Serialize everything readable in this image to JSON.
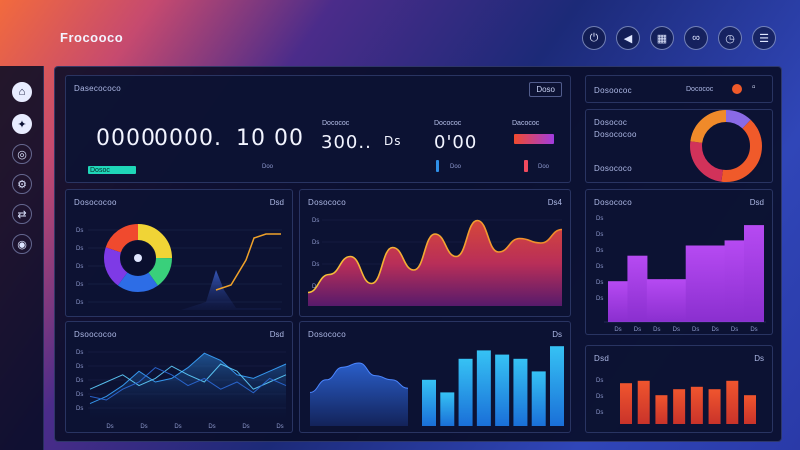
{
  "brand": {
    "title": "Frocooco"
  },
  "top_icons": [
    "power-icon",
    "back-icon",
    "grid-icon",
    "link-icon",
    "clock-icon",
    "menu-icon"
  ],
  "top_icon_glyphs": [
    "⏻",
    "◀",
    "▦",
    "∞",
    "◷",
    "☰"
  ],
  "sidebar": {
    "items": [
      {
        "icon": "home-icon",
        "glyph": "⌂"
      },
      {
        "icon": "compass-icon",
        "glyph": "✦"
      },
      {
        "icon": "globe-icon",
        "glyph": "◎"
      },
      {
        "icon": "settings-icon",
        "glyph": "⚙"
      },
      {
        "icon": "share-icon",
        "glyph": "⇄"
      },
      {
        "icon": "user-icon",
        "glyph": "◉"
      }
    ]
  },
  "kpi_panel": {
    "title": "Dasecococo",
    "button": "Doso",
    "values": [
      {
        "value": "0000",
        "label": "Dosoc"
      },
      {
        "value": "0000.",
        "label": ""
      },
      {
        "value": "10 00",
        "label": ""
      },
      {
        "value": "300..",
        "label": "Docococ"
      },
      {
        "value": "Ds",
        "label": ""
      },
      {
        "value": "0'00",
        "label": "Docococ"
      },
      {
        "value": "",
        "label": "Dacococ"
      }
    ],
    "subs": [
      "Doo",
      "Doo",
      "Doo"
    ]
  },
  "right_top": {
    "title": "Dosoococ",
    "tag": "Docococ",
    "subtitle": "Dosococ",
    "sub2": "Dosococoo",
    "sub3": "Dosococo"
  },
  "colors": {
    "purple": "#a23ce0",
    "orange": "#f05a2a",
    "blue": "#2f8fe8",
    "cyan": "#32b6f0",
    "red_bar": "#e2472c",
    "accent_green": "#1fd6b8"
  },
  "charts": {
    "donut_panel": {
      "title": "Dosococoo",
      "tag": "Dsd",
      "yticks": [
        "Ds",
        "Ds",
        "Ds",
        "Ds",
        "Ds"
      ],
      "chart_data": {
        "type": "pie",
        "values": [
          25,
          15,
          20,
          20,
          20
        ],
        "colors": [
          "#f0d436",
          "#39d07b",
          "#2d6de6",
          "#7e3ae6",
          "#f04a2e"
        ]
      }
    },
    "main_area": {
      "title": "Dosococo",
      "tag": "Ds4",
      "yticks": [
        "Ds",
        "Ds",
        "Ds",
        "Ds"
      ],
      "chart_data": {
        "type": "area",
        "x": [
          0,
          1,
          2,
          3,
          4,
          5,
          6,
          7,
          8,
          9,
          10,
          11,
          12
        ],
        "values": [
          15,
          35,
          55,
          25,
          65,
          40,
          80,
          55,
          95,
          60,
          75,
          70,
          85
        ],
        "ylim": [
          0,
          100
        ]
      }
    },
    "right_bars": {
      "title": "Dosococo",
      "tag": "Dsd",
      "yticks": [
        "Ds",
        "Ds",
        "Ds",
        "Ds",
        "Ds",
        "Ds"
      ],
      "xticks": [
        "Ds",
        "Ds",
        "Ds",
        "Ds",
        "Ds",
        "Ds",
        "Ds",
        "Ds"
      ],
      "chart_data": {
        "type": "bar",
        "values": [
          40,
          65,
          42,
          42,
          75,
          75,
          80,
          95
        ],
        "ylim": [
          0,
          100
        ]
      }
    },
    "line_panel": {
      "title": "Dsoococoo",
      "tag": "Dsd",
      "yticks": [
        "Ds",
        "Ds",
        "Ds",
        "Ds",
        "Ds"
      ],
      "xticks": [
        "Ds",
        "Ds",
        "Ds",
        "Ds",
        "Ds",
        "Ds"
      ],
      "chart_data": {
        "type": "line",
        "x": [
          0,
          1,
          2,
          3,
          4,
          5,
          6,
          7,
          8,
          9,
          10,
          11,
          12
        ],
        "series": [
          {
            "values": [
              20,
              30,
              45,
              65,
              50,
              55,
              70,
              90,
              80,
              60,
              55,
              65,
              75
            ]
          },
          {
            "values": [
              40,
              50,
              60,
              45,
              55,
              72,
              60,
              50,
              75,
              65,
              40,
              50,
              60
            ]
          },
          {
            "values": [
              30,
              25,
              40,
              50,
              70,
              60,
              45,
              55,
              40,
              50,
              35,
              55,
              45
            ]
          }
        ],
        "ylim": [
          0,
          100
        ]
      }
    },
    "mixed_panel": {
      "title": "Dosococo",
      "tag": "Ds",
      "chart_data": {
        "type": "bar",
        "area_values": [
          40,
          55,
          70,
          75,
          60,
          55,
          45
        ],
        "bar_values": [
          55,
          40,
          80,
          90,
          85,
          80,
          65,
          95
        ],
        "ylim": [
          0,
          100
        ]
      }
    },
    "red_bars": {
      "title": "Dsd",
      "tag": "Ds",
      "yticks": [
        "Ds",
        "Ds",
        "Ds"
      ],
      "chart_data": {
        "type": "bar",
        "values": [
          68,
          72,
          48,
          58,
          62,
          58,
          72,
          48
        ],
        "ylim": [
          0,
          100
        ]
      }
    },
    "right_donut": {
      "chart_data": {
        "type": "pie",
        "values": [
          12,
          40,
          25,
          23
        ],
        "colors": [
          "#8a6ae6",
          "#f05a2a",
          "#d1325a",
          "#f08a2a"
        ]
      }
    }
  }
}
